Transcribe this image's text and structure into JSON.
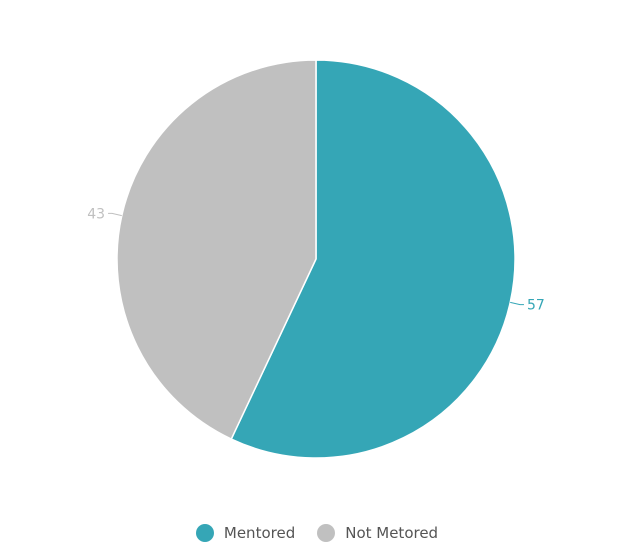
{
  "chart_data": {
    "type": "pie",
    "title": "",
    "slices": [
      {
        "label": "Mentored",
        "value": 57,
        "color": "#35a6b6"
      },
      {
        "label": "Not Metored",
        "value": 43,
        "color": "#c0c0c0"
      }
    ],
    "start": "top",
    "direction": "clockwise",
    "legend": "bottom-center",
    "data_labels": [
      "57",
      "43"
    ]
  },
  "legend": {
    "items": [
      {
        "label": "Mentored",
        "color": "#35a6b6"
      },
      {
        "label": "Not Metored",
        "color": "#c0c0c0"
      }
    ]
  }
}
